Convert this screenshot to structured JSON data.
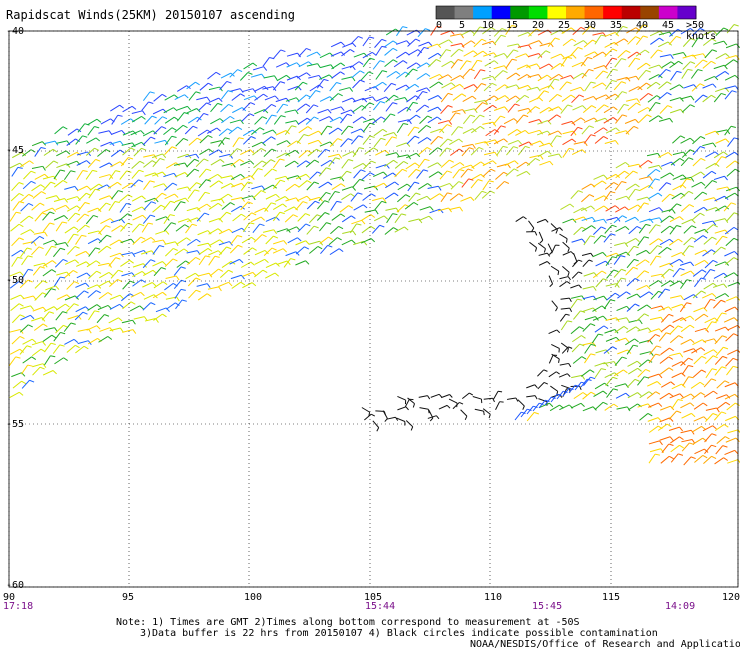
{
  "title": "Rapidscat Winds(25KM) 20150107 ascending",
  "legend": {
    "labels": [
      "0",
      "5",
      "10",
      "15",
      "20",
      "25",
      "30",
      "35",
      "40",
      "45",
      ">50 knots"
    ],
    "colors": [
      "#555555",
      "#7f7f7f",
      "#00a0ff",
      "#0000ff",
      "#009900",
      "#00dd00",
      "#ffff00",
      "#ffaa00",
      "#ff6600",
      "#ff0000",
      "#bb0000",
      "#994400",
      "#cc00cc",
      "#6600cc"
    ]
  },
  "lat_labels": [
    "-40",
    "-45",
    "-50",
    "-55",
    "-60"
  ],
  "lon_labels": [
    "90",
    "95",
    "100",
    "105",
    "110",
    "115",
    "120"
  ],
  "times": [
    "17:18",
    "15:44",
    "15:45",
    "14:09"
  ],
  "notes": {
    "line1": "Note: 1) Times are GMT 2)Times along bottom correspond to measurement at -50S",
    "line2": "3)Data buffer is 22 hrs from 20150107 4) Black circles indicate possible contamination",
    "line3": "NOAA/NESDIS/Office of Research and Applications"
  }
}
